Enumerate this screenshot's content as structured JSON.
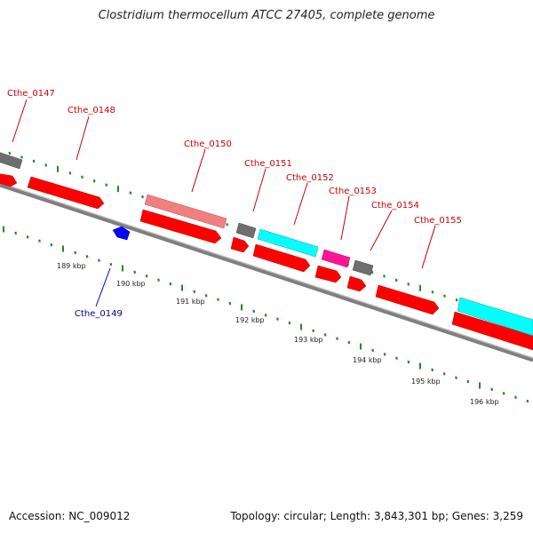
{
  "title": "Clostridium thermocellum ATCC 27405, complete genome",
  "accession_text": "Accession: NC_009012",
  "topology_text": "Topology: circular; Length: 3,843,301 bp; Genes: 3,259",
  "colors": {
    "backbone": "#7f7f7f",
    "cds_red": "#ff0000",
    "cds_pink": "#f08080",
    "cds_gray": "#6e6e6e",
    "cds_cyan": "#00ffff",
    "cds_magenta": "#ff1493",
    "cds_blue": "#0000ff",
    "tick_green": "#228b22",
    "label_red": "#cc0000",
    "label_blue": "#00008b"
  },
  "gene_labels": [
    {
      "name": "Cthe_0147",
      "color": "label_red"
    },
    {
      "name": "Cthe_0148",
      "color": "label_red"
    },
    {
      "name": "Cthe_0149",
      "color": "label_blue"
    },
    {
      "name": "Cthe_0150",
      "color": "label_red"
    },
    {
      "name": "Cthe_0151",
      "color": "label_red"
    },
    {
      "name": "Cthe_0152",
      "color": "label_red"
    },
    {
      "name": "Cthe_0153",
      "color": "label_red"
    },
    {
      "name": "Cthe_0154",
      "color": "label_red"
    },
    {
      "name": "Cthe_0155",
      "color": "label_red"
    }
  ],
  "kbp_labels": [
    "189 kbp",
    "190 kbp",
    "191 kbp",
    "192 kbp",
    "193 kbp",
    "194 kbp",
    "195 kbp",
    "196 kbp"
  ]
}
